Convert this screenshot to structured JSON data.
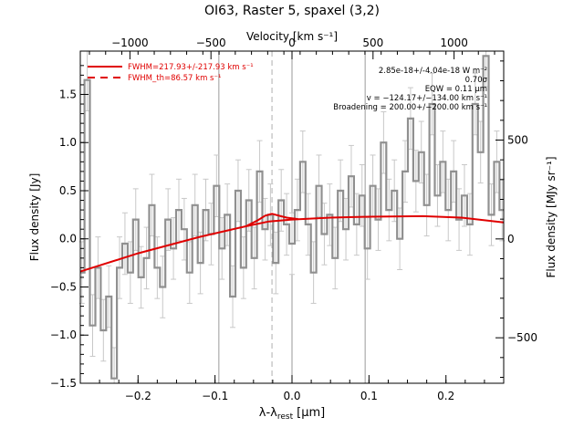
{
  "chart_data": {
    "type": "line",
    "title": "OI63, Raster 5, spaxel (3,2)",
    "xlabel": "λ-λ",
    "xlabel_sub": "rest",
    "xlabel_unit": "[μm]",
    "ylabel": "Flux density [Jy]",
    "ylabel_right": "Flux density [MJy sr⁻¹]",
    "top_axis_label": "Velocity [km s⁻¹]",
    "xlim": [
      -0.275,
      0.275
    ],
    "ylim": [
      -1.5,
      1.95
    ],
    "y2lim": [
      -730,
      950
    ],
    "vel_per_um": 4750,
    "x_ticks": [
      -0.2,
      -0.1,
      0.0,
      0.1,
      0.2
    ],
    "x_tick_labels": [
      "−0.2",
      "−0.1",
      "0.0",
      "0.1",
      "0.2"
    ],
    "y_ticks": [
      -1.5,
      -1.0,
      -0.5,
      0.0,
      0.5,
      1.0,
      1.5
    ],
    "y_tick_labels": [
      "−1.5",
      "−1.0",
      "−0.5",
      "0.0",
      "0.5",
      "1.0",
      "1.5"
    ],
    "top_ticks": [
      -1000,
      -500,
      0,
      500,
      1000
    ],
    "top_tick_labels": [
      "−1000",
      "−500",
      "0",
      "500",
      "1000"
    ],
    "right_ticks": [
      -500,
      0,
      500
    ],
    "right_tick_labels": [
      "−500",
      "0",
      "500"
    ],
    "vlines_solid": [
      -0.095,
      0.0,
      0.095
    ],
    "vline_dashed": -0.026,
    "legend": [
      {
        "label": "FWHM=217.93+/-217.93 km s⁻¹",
        "style": "solid",
        "color": "#e00000"
      },
      {
        "label": "FWHM_th=86.57 km s⁻¹",
        "style": "dashed",
        "color": "#e00000"
      }
    ],
    "annotations": [
      "2.85e-18+/-4.04e-18 W m⁻²",
      "0.70σ",
      "EQW = 0.11 μm",
      "v = −124.17+/−134.00 km s⁻¹",
      "Broadening = 200.00+/−200.00 km s⁻¹"
    ],
    "series": [
      {
        "style": "histogram",
        "color": "#909090",
        "x": [
          -0.273,
          -0.266,
          -0.259,
          -0.252,
          -0.245,
          -0.238,
          -0.231,
          -0.224,
          -0.217,
          -0.21,
          -0.203,
          -0.196,
          -0.189,
          -0.182,
          -0.175,
          -0.168,
          -0.161,
          -0.154,
          -0.147,
          -0.14,
          -0.133,
          -0.126,
          -0.119,
          -0.112,
          -0.105,
          -0.098,
          -0.091,
          -0.084,
          -0.077,
          -0.07,
          -0.063,
          -0.056,
          -0.049,
          -0.042,
          -0.035,
          -0.028,
          -0.021,
          -0.014,
          -0.007,
          0.0,
          0.007,
          0.014,
          0.021,
          0.028,
          0.035,
          0.042,
          0.049,
          0.056,
          0.063,
          0.07,
          0.077,
          0.084,
          0.091,
          0.098,
          0.105,
          0.112,
          0.119,
          0.126,
          0.133,
          0.14,
          0.147,
          0.154,
          0.161,
          0.168,
          0.175,
          0.182,
          0.189,
          0.196,
          0.203,
          0.21,
          0.217,
          0.224,
          0.231,
          0.238,
          0.245,
          0.252,
          0.259,
          0.266,
          0.273
        ],
        "values": [
          -0.35,
          1.65,
          -0.9,
          -0.3,
          -0.95,
          -0.6,
          -1.45,
          -0.3,
          -0.05,
          -0.35,
          0.2,
          -0.4,
          -0.2,
          0.35,
          -0.3,
          -0.5,
          0.2,
          -0.1,
          0.3,
          0.1,
          -0.35,
          0.35,
          -0.25,
          0.3,
          0.05,
          0.55,
          -0.1,
          0.25,
          -0.6,
          0.5,
          -0.3,
          0.4,
          -0.2,
          0.7,
          0.1,
          0.25,
          -0.25,
          0.4,
          0.15,
          -0.05,
          0.3,
          0.8,
          0.15,
          -0.35,
          0.55,
          0.05,
          0.25,
          -0.2,
          0.5,
          0.1,
          0.65,
          0.15,
          0.45,
          -0.1,
          0.55,
          0.2,
          1.0,
          0.3,
          0.5,
          0.0,
          0.7,
          1.25,
          0.6,
          0.9,
          0.35,
          1.4,
          0.45,
          0.8,
          0.3,
          0.7,
          0.2,
          0.45,
          0.15,
          1.4,
          0.9,
          1.9,
          0.25,
          0.8,
          0.3
        ],
        "err": 0.32
      },
      {
        "name": "Fit",
        "style": "line",
        "color": "#e00000",
        "x": [
          -0.275,
          -0.2,
          -0.12,
          -0.06,
          -0.03,
          0.0,
          0.05,
          0.1,
          0.17,
          0.22,
          0.275
        ],
        "values": [
          -0.34,
          -0.15,
          0.02,
          0.13,
          0.18,
          0.2,
          0.22,
          0.23,
          0.235,
          0.22,
          0.17
        ]
      },
      {
        "name": "Line component",
        "style": "line",
        "color": "#e00000",
        "x": [
          -0.06,
          -0.045,
          -0.035,
          -0.026,
          -0.017,
          -0.007,
          0.008
        ],
        "values": [
          0.13,
          0.19,
          0.24,
          0.26,
          0.24,
          0.22,
          0.205
        ]
      }
    ]
  }
}
